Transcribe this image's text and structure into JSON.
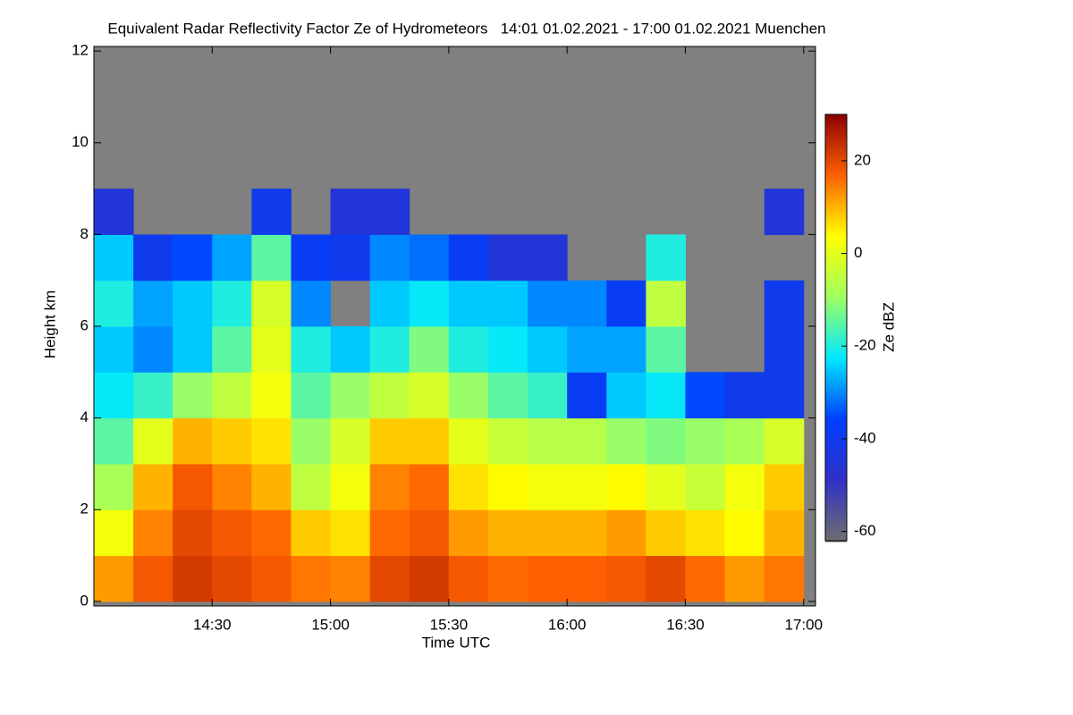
{
  "chart_data": {
    "type": "heatmap",
    "title": "Equivalent Radar Reflectivity Factor Ze of Hydrometeors   14:01 01.02.2021 - 17:00 01.02.2021 Muenchen",
    "x_label": "Time UTC",
    "y_label": "Height km",
    "colorbar_label": "Ze dBZ",
    "xlim": [
      840,
      1023
    ],
    "xticks": [
      {
        "value": 870,
        "label": "14:30"
      },
      {
        "value": 900,
        "label": "15:00"
      },
      {
        "value": 930,
        "label": "15:30"
      },
      {
        "value": 960,
        "label": "16:00"
      },
      {
        "value": 990,
        "label": "16:30"
      },
      {
        "value": 1020,
        "label": "17:00"
      }
    ],
    "ylim": [
      -0.1,
      12.1
    ],
    "yticks": [
      0,
      2,
      4,
      6,
      8,
      10,
      12
    ],
    "zlim": [
      -62,
      30
    ],
    "zticks": [
      -60,
      -40,
      -20,
      0,
      20
    ],
    "x_edges": [
      840,
      850,
      860,
      870,
      880,
      890,
      900,
      910,
      920,
      930,
      940,
      950,
      960,
      970,
      980,
      990,
      1000,
      1010,
      1020
    ],
    "y_edges": [
      0,
      1,
      2,
      3,
      4,
      5,
      6,
      7,
      8,
      9
    ],
    "colors": [
      "#6e6e6e",
      "#3030c8",
      "#0040ff",
      "#00e8ff",
      "#a0ff60",
      "#ffff00",
      "#ff6000",
      "#8b0000"
    ],
    "missing_color": "#808080",
    "values": [
      [
        12,
        18,
        22,
        20,
        18,
        15,
        14,
        20,
        22,
        18,
        16,
        17,
        17,
        18,
        20,
        16,
        12,
        15
      ],
      [
        2,
        14,
        20,
        18,
        16,
        8,
        6,
        16,
        18,
        12,
        10,
        10,
        10,
        12,
        8,
        6,
        4,
        10
      ],
      [
        -8,
        10,
        18,
        14,
        10,
        -5,
        2,
        14,
        16,
        6,
        4,
        2,
        2,
        4,
        0,
        -4,
        2,
        8
      ],
      [
        -15,
        0,
        10,
        8,
        6,
        -10,
        -2,
        8,
        8,
        0,
        -4,
        -6,
        -6,
        -10,
        -12,
        -10,
        -8,
        -2
      ],
      [
        -22,
        -18,
        -10,
        -5,
        2,
        -15,
        -10,
        -5,
        -2,
        -10,
        -15,
        -18,
        -38,
        -25,
        -22,
        -35,
        -40,
        -40
      ],
      [
        -25,
        -30,
        -25,
        -15,
        0,
        -20,
        -25,
        -20,
        -12,
        -20,
        -22,
        -25,
        -28,
        -28,
        -15,
        null,
        null,
        -40
      ],
      [
        -20,
        -28,
        -25,
        -20,
        -2,
        -30,
        null,
        -25,
        -22,
        -25,
        -25,
        -30,
        -30,
        -38,
        -5,
        null,
        null,
        -40
      ],
      [
        -25,
        -40,
        -35,
        -28,
        -15,
        -38,
        -40,
        -30,
        -32,
        -38,
        -45,
        -45,
        null,
        null,
        -20,
        null,
        null,
        null
      ],
      [
        -45,
        null,
        null,
        null,
        -40,
        null,
        -45,
        -45,
        null,
        null,
        null,
        null,
        null,
        null,
        null,
        null,
        null,
        -45
      ]
    ]
  }
}
